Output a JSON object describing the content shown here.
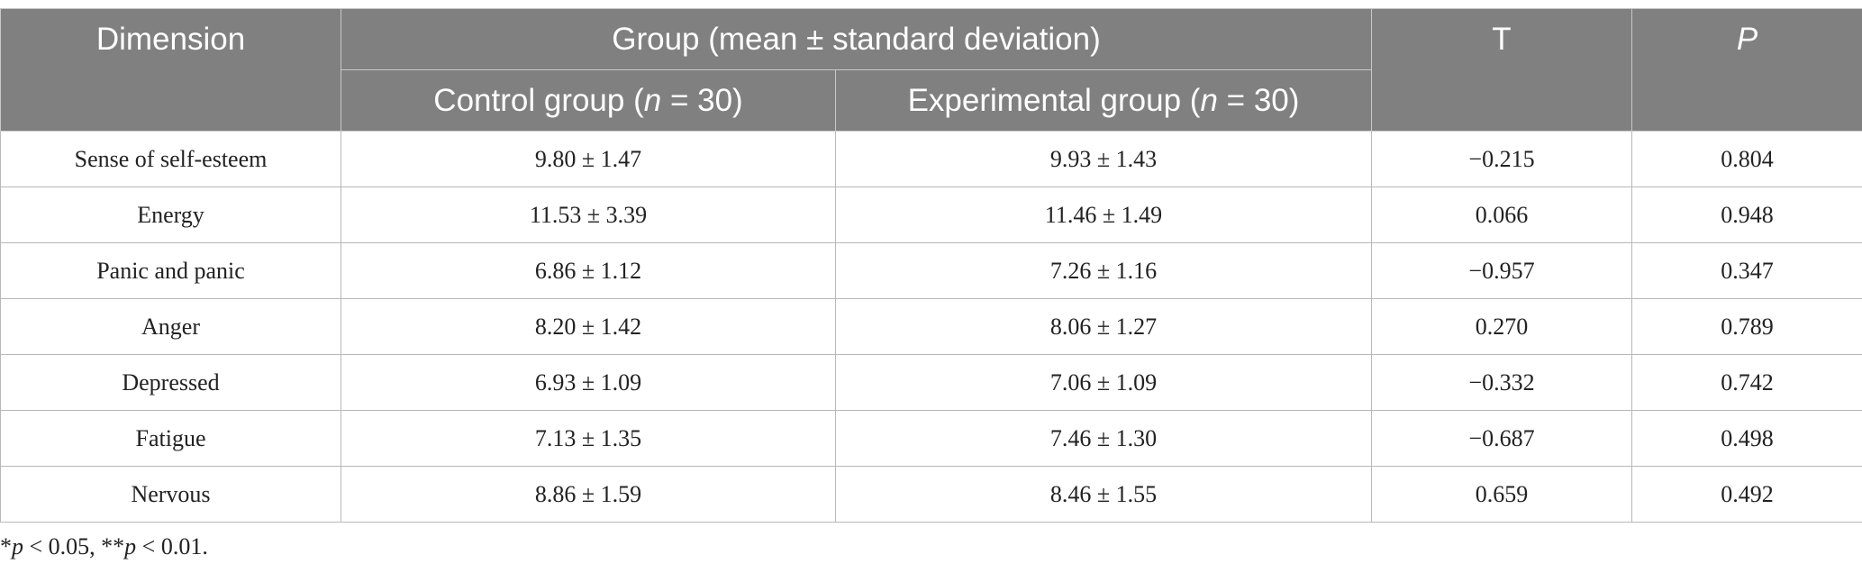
{
  "header": {
    "dimension": "Dimension",
    "group": "Group (mean ± standard deviation)",
    "subgroups": [
      [
        {
          "text": "Control group ("
        },
        {
          "text": "n",
          "italic": true
        },
        {
          "text": " = 30)"
        }
      ],
      [
        {
          "text": "Experimental group ("
        },
        {
          "text": "n",
          "italic": true
        },
        {
          "text": " = 30)"
        }
      ]
    ],
    "t": "T",
    "p": [
      {
        "text": "P",
        "italic": true
      }
    ]
  },
  "rows": [
    [
      "Sense of self-esteem",
      "9.80 ± 1.47",
      "9.93 ± 1.43",
      "−0.215",
      "0.804"
    ],
    [
      "Energy",
      "11.53 ± 3.39",
      "11.46 ± 1.49",
      "0.066",
      "0.948"
    ],
    [
      "Panic and panic",
      "6.86 ± 1.12",
      "7.26 ± 1.16",
      "−0.957",
      "0.347"
    ],
    [
      "Anger",
      "8.20 ± 1.42",
      "8.06 ± 1.27",
      "0.270",
      "0.789"
    ],
    [
      "Depressed",
      "6.93 ± 1.09",
      "7.06 ± 1.09",
      "−0.332",
      "0.742"
    ],
    [
      "Fatigue",
      "7.13 ± 1.35",
      "7.46 ± 1.30",
      "−0.687",
      "0.498"
    ],
    [
      "Nervous",
      "8.86 ± 1.59",
      "8.46 ± 1.55",
      "0.659",
      "0.492"
    ]
  ],
  "footnote": [
    {
      "text": "*"
    },
    {
      "text": "p",
      "italic": true
    },
    {
      "text": " < 0.05, **"
    },
    {
      "text": "p",
      "italic": true
    },
    {
      "text": " < 0.01."
    }
  ]
}
